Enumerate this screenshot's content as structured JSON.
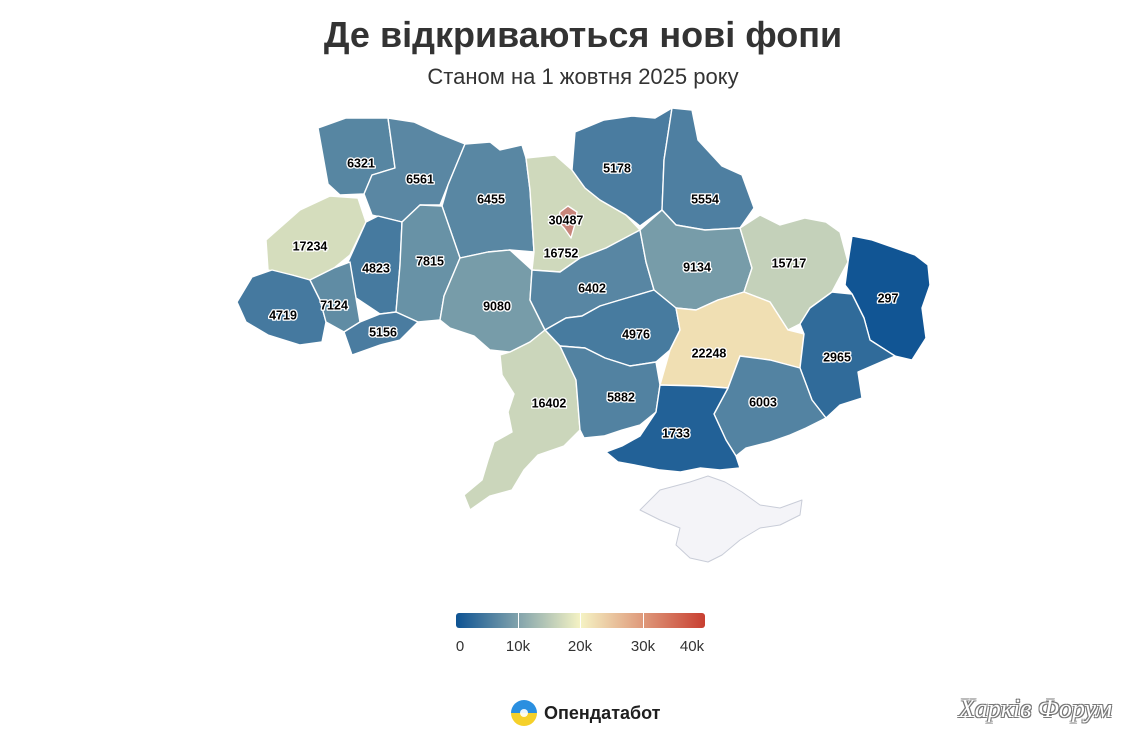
{
  "header": {
    "title": "Де відкриваються нові фопи",
    "subtitle": "Станом на 1 жовтня 2025 року"
  },
  "map": {
    "colors": {
      "low": "#0e5393",
      "mid": "#f5f3c4",
      "high": "#c83f31",
      "no_data": "#f4f4f8",
      "city": "#c8857a"
    },
    "regions": [
      {
        "id": "volyn",
        "value": 6321
      },
      {
        "id": "rivne",
        "value": 6561
      },
      {
        "id": "zhytomyr",
        "value": 6455
      },
      {
        "id": "kyiv_city",
        "value": 30487
      },
      {
        "id": "kyiv_oblast",
        "value": 16752
      },
      {
        "id": "chernihiv",
        "value": 5178
      },
      {
        "id": "sumy",
        "value": 5554
      },
      {
        "id": "lviv",
        "value": 17234
      },
      {
        "id": "ternopil",
        "value": 4823
      },
      {
        "id": "khmelnytskyi",
        "value": 7815
      },
      {
        "id": "zakarpattia",
        "value": 4719
      },
      {
        "id": "ivano_frankivsk",
        "value": 7124
      },
      {
        "id": "chernivtsi",
        "value": 5156
      },
      {
        "id": "vinnytsia",
        "value": 9080
      },
      {
        "id": "cherkasy",
        "value": 6402
      },
      {
        "id": "poltava",
        "value": 9134
      },
      {
        "id": "kharkiv",
        "value": 15717
      },
      {
        "id": "luhansk",
        "value": 297
      },
      {
        "id": "kirovohrad",
        "value": 4976
      },
      {
        "id": "dnipropetrovsk",
        "value": 22248
      },
      {
        "id": "donetsk",
        "value": 2965
      },
      {
        "id": "odesa",
        "value": 16402
      },
      {
        "id": "mykolaiv",
        "value": 5882
      },
      {
        "id": "zaporizhzhia",
        "value": 6003
      },
      {
        "id": "kherson",
        "value": 1733
      },
      {
        "id": "crimea",
        "value": null
      }
    ]
  },
  "legend": {
    "min": 0,
    "max": 40000,
    "ticks": [
      {
        "value": 0,
        "label": "0"
      },
      {
        "value": 10000,
        "label": "10k"
      },
      {
        "value": 20000,
        "label": "20k"
      },
      {
        "value": 30000,
        "label": "30k"
      },
      {
        "value": 40000,
        "label": "40k"
      }
    ]
  },
  "footer": {
    "brand": "Опендатабот",
    "watermark": "Харків Форум"
  }
}
